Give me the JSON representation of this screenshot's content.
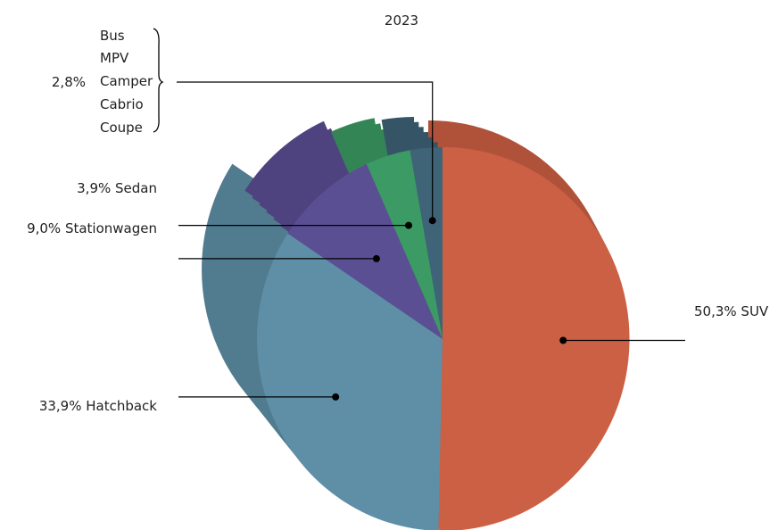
{
  "colors": {
    "suv": "#cc6044",
    "hatchback": "#5f8fa6",
    "stationwagen": "#5b4f94",
    "sedan": "#3c9b65",
    "other": "#3f6377",
    "leader": "#000000"
  },
  "chart_data": {
    "type": "pie",
    "title": "2023",
    "slices": [
      {
        "name": "SUV",
        "value": 50.3,
        "label": "50,3% SUV"
      },
      {
        "name": "Hatchback",
        "value": 33.9,
        "label": "33,9% Hatchback"
      },
      {
        "name": "Stationwagen",
        "value": 9.0,
        "label": "9,0% Stationwagen"
      },
      {
        "name": "Sedan",
        "value": 3.9,
        "label": "3,9% Sedan"
      },
      {
        "name": "Bus / MPV / Camper / Cabrio / Coupe",
        "value": 2.8,
        "label": "2,8%"
      }
    ],
    "group_members": [
      "Bus",
      "MPV",
      "Camper",
      "Cabrio",
      "Coupe"
    ],
    "legend": "none"
  }
}
